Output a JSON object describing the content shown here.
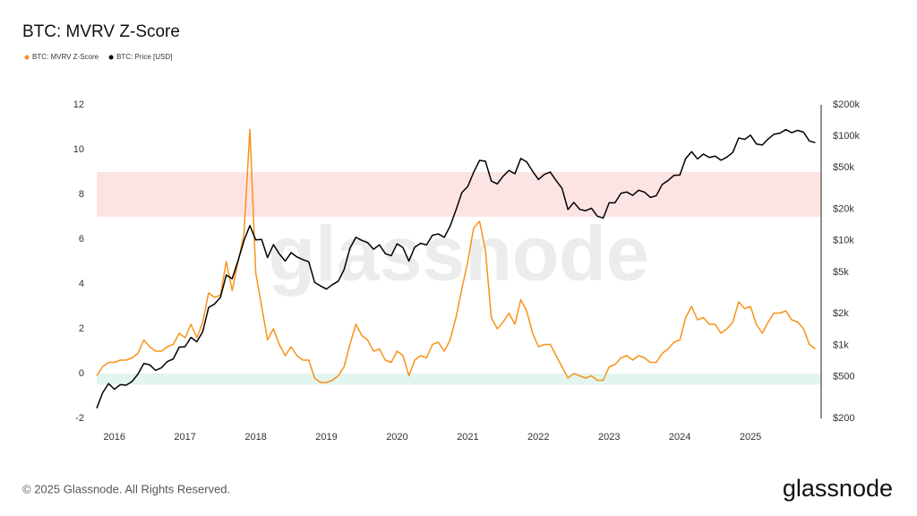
{
  "chart_data": {
    "type": "line",
    "title": "BTC: MVRV Z-Score",
    "watermark": "glassnode",
    "x": [
      2015.75,
      2015.833,
      2015.917,
      2016.0,
      2016.083,
      2016.167,
      2016.25,
      2016.333,
      2016.417,
      2016.5,
      2016.583,
      2016.667,
      2016.75,
      2016.833,
      2016.917,
      2017.0,
      2017.083,
      2017.167,
      2017.25,
      2017.333,
      2017.417,
      2017.5,
      2017.583,
      2017.667,
      2017.75,
      2017.833,
      2017.917,
      2018.0,
      2018.083,
      2018.167,
      2018.25,
      2018.333,
      2018.417,
      2018.5,
      2018.583,
      2018.667,
      2018.75,
      2018.833,
      2018.917,
      2019.0,
      2019.083,
      2019.167,
      2019.25,
      2019.333,
      2019.417,
      2019.5,
      2019.583,
      2019.667,
      2019.75,
      2019.833,
      2019.917,
      2020.0,
      2020.083,
      2020.167,
      2020.25,
      2020.333,
      2020.417,
      2020.5,
      2020.583,
      2020.667,
      2020.75,
      2020.833,
      2020.917,
      2021.0,
      2021.083,
      2021.167,
      2021.25,
      2021.333,
      2021.417,
      2021.5,
      2021.583,
      2021.667,
      2021.75,
      2021.833,
      2021.917,
      2022.0,
      2022.083,
      2022.167,
      2022.25,
      2022.333,
      2022.417,
      2022.5,
      2022.583,
      2022.667,
      2022.75,
      2022.833,
      2022.917,
      2023.0,
      2023.083,
      2023.167,
      2023.25,
      2023.333,
      2023.417,
      2023.5,
      2023.583,
      2023.667,
      2023.75,
      2023.833,
      2023.917,
      2024.0,
      2024.083,
      2024.167,
      2024.25,
      2024.333,
      2024.417,
      2024.5,
      2024.583,
      2024.667,
      2024.75,
      2024.833,
      2024.917,
      2025.0,
      2025.083,
      2025.167,
      2025.25,
      2025.333,
      2025.417,
      2025.5,
      2025.583,
      2025.667,
      2025.75,
      2025.833,
      2025.917
    ],
    "series": [
      {
        "name": "BTC: MVRV Z-Score",
        "color": "#f7931a",
        "axis": "y",
        "values": [
          -0.1,
          0.3,
          0.5,
          0.5,
          0.6,
          0.6,
          0.7,
          0.9,
          1.5,
          1.2,
          1.0,
          1.0,
          1.2,
          1.3,
          1.8,
          1.6,
          2.2,
          1.6,
          2.3,
          3.6,
          3.4,
          3.5,
          5.0,
          3.7,
          5.0,
          6.2,
          10.9,
          4.5,
          3.0,
          1.5,
          2.0,
          1.3,
          0.8,
          1.2,
          0.8,
          0.6,
          0.6,
          -0.2,
          -0.4,
          -0.4,
          -0.3,
          -0.1,
          0.3,
          1.3,
          2.2,
          1.7,
          1.5,
          1.0,
          1.1,
          0.6,
          0.5,
          1.0,
          0.8,
          -0.1,
          0.6,
          0.8,
          0.7,
          1.3,
          1.4,
          1.0,
          1.5,
          2.5,
          3.8,
          5.0,
          6.5,
          6.8,
          5.5,
          2.5,
          2.0,
          2.3,
          2.7,
          2.2,
          3.3,
          2.8,
          1.8,
          1.2,
          1.3,
          1.3,
          0.8,
          0.3,
          -0.2,
          0.0,
          -0.1,
          -0.2,
          -0.1,
          -0.3,
          -0.3,
          0.3,
          0.4,
          0.7,
          0.8,
          0.6,
          0.8,
          0.7,
          0.5,
          0.5,
          0.9,
          1.1,
          1.4,
          1.5,
          2.5,
          3.0,
          2.4,
          2.5,
          2.2,
          2.2,
          1.8,
          2.0,
          2.3,
          3.2,
          2.9,
          3.0,
          2.2,
          1.8,
          2.3,
          2.7,
          2.7,
          2.8,
          2.4,
          2.3,
          2.0,
          1.3,
          1.1
        ]
      },
      {
        "name": "BTC: Price [USD]",
        "color": "#000000",
        "axis": "y2",
        "values": [
          250,
          350,
          430,
          380,
          420,
          415,
          450,
          530,
          670,
          650,
          575,
          610,
          700,
          740,
          960,
          970,
          1190,
          1080,
          1350,
          2300,
          2480,
          2870,
          4700,
          4340,
          6450,
          10000,
          14000,
          10200,
          10300,
          6900,
          9200,
          7500,
          6400,
          7700,
          7000,
          6600,
          6300,
          4000,
          3700,
          3450,
          3800,
          4100,
          5300,
          8500,
          10800,
          10100,
          9600,
          8300,
          9150,
          7550,
          7200,
          9350,
          8600,
          6400,
          8700,
          9450,
          9140,
          11300,
          11650,
          10780,
          13800,
          19700,
          29000,
          33100,
          45200,
          58800,
          57700,
          37300,
          35000,
          41500,
          47100,
          43800,
          61300,
          57000,
          46300,
          38500,
          43200,
          45500,
          37700,
          31800,
          19900,
          23300,
          20000,
          19400,
          20500,
          17200,
          16500,
          23100,
          23100,
          28500,
          29300,
          27200,
          30500,
          29200,
          26000,
          27000,
          34500,
          37700,
          42300,
          42600,
          61200,
          71300,
          60700,
          67500,
          62700,
          64600,
          59000,
          63300,
          70200,
          96400,
          93400,
          102400,
          84400,
          82500,
          94200,
          104600,
          107100,
          115800,
          108300,
          114000,
          109500,
          90000,
          87000
        ]
      }
    ],
    "xlim": [
      2015.75,
      2026.0
    ],
    "xticks": [
      2016,
      2017,
      2018,
      2019,
      2020,
      2021,
      2022,
      2023,
      2024,
      2025
    ],
    "ylim": [
      -2,
      12
    ],
    "yticks": [
      -2,
      0,
      2,
      4,
      6,
      8,
      10,
      12
    ],
    "y2lim": [
      200,
      200000
    ],
    "y2scale": "log",
    "y2ticks": [
      {
        "value": 200,
        "label": "$200"
      },
      {
        "value": 500,
        "label": "$500"
      },
      {
        "value": 1000,
        "label": "$1k"
      },
      {
        "value": 2000,
        "label": "$2k"
      },
      {
        "value": 5000,
        "label": "$5k"
      },
      {
        "value": 10000,
        "label": "$10k"
      },
      {
        "value": 20000,
        "label": "$20k"
      },
      {
        "value": 50000,
        "label": "$50k"
      },
      {
        "value": 100000,
        "label": "$100k"
      },
      {
        "value": 200000,
        "label": "$200k"
      }
    ],
    "bands": [
      {
        "from": 7,
        "to": 9,
        "color": "#fde4e4"
      },
      {
        "from": -0.5,
        "to": 0,
        "color": "#e2f5ee"
      }
    ],
    "legend": "top-left"
  },
  "footer": {
    "copyright": "© 2025 Glassnode. All Rights Reserved.",
    "logo": "glassnode"
  }
}
